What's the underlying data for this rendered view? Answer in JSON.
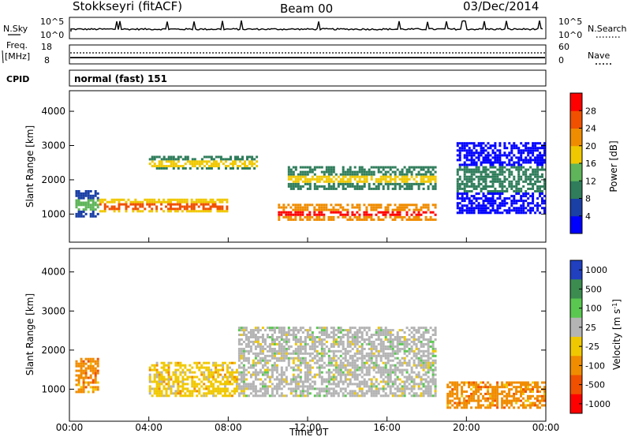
{
  "header": {
    "station": "Stokkseyri (fitACF)",
    "beam": "Beam 00",
    "date": "03/Dec/2014"
  },
  "strip_panels": {
    "nsky_label": "N.Sky",
    "nsky_ticks": [
      "10^5",
      "10^0"
    ],
    "nsearch_label": "N.Search",
    "nsearch_ticks": [
      "10^5",
      "10^0"
    ],
    "freq_label_1": "Freq.",
    "freq_label_2": "[MHz]",
    "freq_ticks": [
      "18",
      "8"
    ],
    "nave_label": "Nave",
    "nave_ticks": [
      "60",
      "0"
    ],
    "cpid_label": "CPID",
    "cpid_value": "normal (fast) 151"
  },
  "x_axis": {
    "label": "Time UT",
    "ticks": [
      "00:00",
      "04:00",
      "08:00",
      "12:00",
      "16:00",
      "20:00",
      "00:00"
    ]
  },
  "colors": {
    "power": [
      "#0000ff",
      "#1a3fa5",
      "#2f7d5b",
      "#5fb55a",
      "#f0c800",
      "#f08c00",
      "#f05000",
      "#ff0000"
    ],
    "velocity": [
      "#2040c0",
      "#3c8c50",
      "#5ac850",
      "#b4b4b4",
      "#f0c800",
      "#f08c00",
      "#f05000",
      "#ff0000"
    ]
  },
  "chart_data": [
    {
      "type": "heatmap",
      "title": "",
      "xlabel": "Time UT",
      "ylabel": "Slant Range [km]",
      "xlim_hours": [
        0,
        24
      ],
      "ylim_km": [
        180,
        4600
      ],
      "yticks": [
        1000,
        2000,
        3000,
        4000
      ],
      "colorbar": {
        "label": "Power [dB]",
        "ticks": [
          4,
          8,
          12,
          16,
          20,
          24,
          28
        ],
        "range": [
          0,
          30
        ]
      },
      "features": [
        {
          "name": "evening band",
          "t_start": 0.3,
          "t_end": 1.5,
          "range_km": [
            900,
            1700
          ],
          "level": 12
        },
        {
          "name": "morning E-region band",
          "t_start": 1.5,
          "t_end": 8.0,
          "range_km": [
            1050,
            1450
          ],
          "level": 22
        },
        {
          "name": "upper F band",
          "t_start": 4.0,
          "t_end": 9.5,
          "range_km": [
            2300,
            2700
          ],
          "level": 14
        },
        {
          "name": "noon F band",
          "t_start": 10.5,
          "t_end": 18.5,
          "range_km": [
            800,
            1300
          ],
          "level": 28
        },
        {
          "name": "arc",
          "t_start": 11.0,
          "t_end": 18.5,
          "range_km": [
            1700,
            2400
          ],
          "level": 15
        },
        {
          "name": "night patches",
          "t_start": 19.5,
          "t_end": 24.0,
          "range_km": [
            1000,
            3100
          ],
          "level": 8
        }
      ]
    },
    {
      "type": "heatmap",
      "title": "",
      "xlabel": "Time UT",
      "ylabel": "Slant Range [km]",
      "xlim_hours": [
        0,
        24
      ],
      "ylim_km": [
        180,
        4600
      ],
      "yticks": [
        1000,
        2000,
        3000,
        4000
      ],
      "colorbar": {
        "label": "Velocity [m s-1]",
        "ticks": [
          1000,
          500,
          100,
          25,
          -25,
          -100,
          -500,
          -1000
        ]
      },
      "features": [
        {
          "name": "evening flow",
          "t_start": 0.3,
          "t_end": 1.5,
          "range_km": [
            900,
            1800
          ],
          "velocity": -200
        },
        {
          "name": "morning band",
          "t_start": 4.0,
          "t_end": 8.5,
          "range_km": [
            800,
            1700
          ],
          "velocity": -100
        },
        {
          "name": "ground scatter",
          "t_start": 8.5,
          "t_end": 18.5,
          "range_km": [
            800,
            2600
          ],
          "velocity": 0
        },
        {
          "name": "night returns",
          "t_start": 19.0,
          "t_end": 24.0,
          "range_km": [
            500,
            1200
          ],
          "velocity": -300
        }
      ]
    }
  ]
}
